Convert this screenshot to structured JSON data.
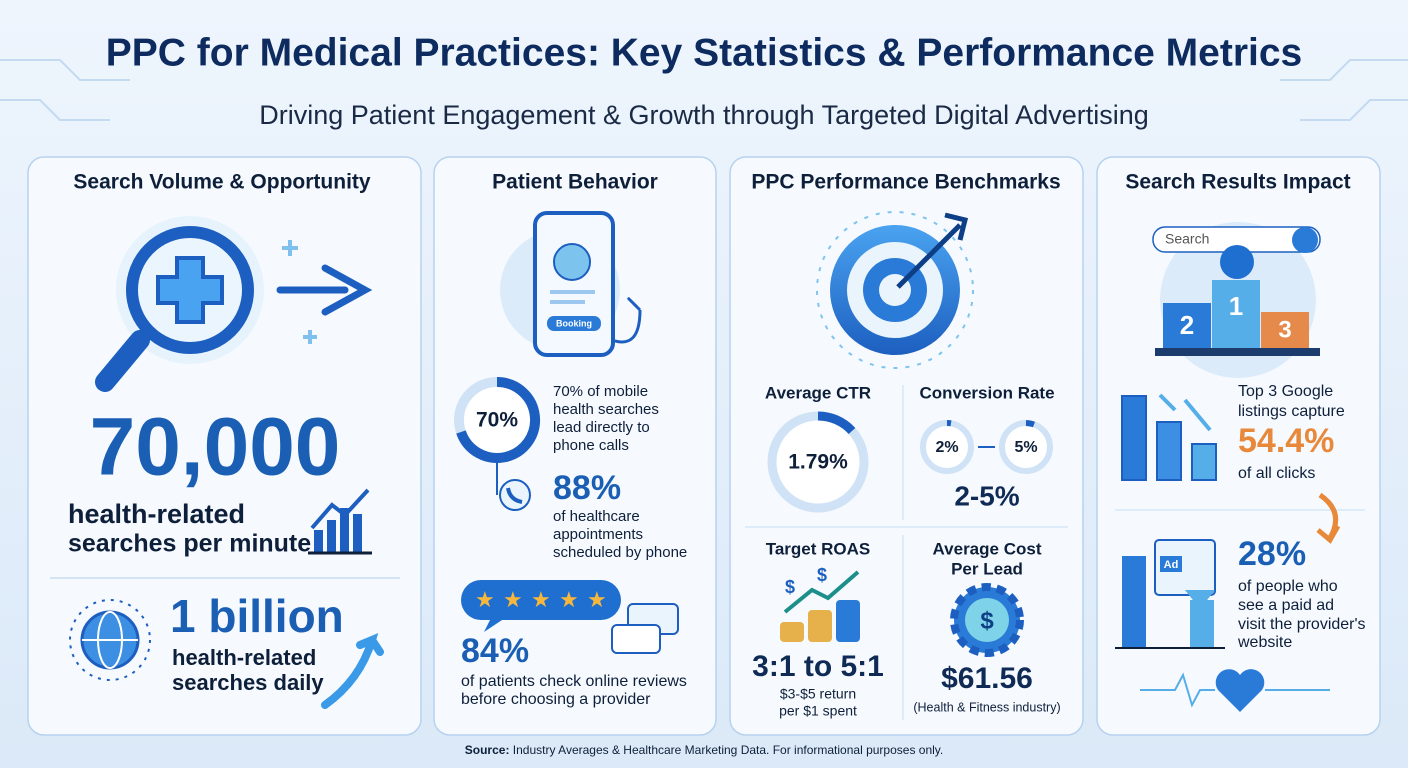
{
  "header": {
    "title": "PPC for Medical Practices: Key Statistics & Performance Metrics",
    "subtitle": "Driving Patient Engagement & Growth through Targeted Digital Advertising"
  },
  "panels": [
    {
      "heading": "Search Volume & Opportunity",
      "stat_1": {
        "value": "70,000",
        "lines": [
          "health-related",
          "searches per minute"
        ]
      },
      "stat_2": {
        "value": "1 billion",
        "lines": [
          "health-related",
          "searches daily"
        ]
      }
    },
    {
      "heading": "Patient Behavior",
      "phone_button": "Booking",
      "donut": {
        "value": "70%",
        "lines": [
          "70% of mobile",
          "health searches",
          "lead directly to",
          "phone calls"
        ]
      },
      "stat_1": {
        "value": "88%",
        "lines": [
          "of healthcare",
          "appointments",
          "scheduled by phone"
        ]
      },
      "stat_2": {
        "value": "84%",
        "lines": [
          "of patients check online reviews",
          "before choosing a provider"
        ]
      }
    },
    {
      "heading": "PPC Performance Benchmarks",
      "ctr": {
        "label": "Average CTR",
        "value": "1.79%"
      },
      "conversion": {
        "label": "Conversion Rate",
        "low": "2%",
        "high": "5%",
        "value": "2-5%"
      },
      "roas": {
        "label": "Target ROAS",
        "icon_symbols": [
          "$",
          "$"
        ],
        "value": "3:1 to 5:1",
        "lines": [
          "$3-$5 return",
          "per $1 spent"
        ]
      },
      "cost_per_lead": {
        "lines": [
          "Average Cost",
          "Per Lead"
        ],
        "icon_symbol": "$",
        "value": "$61.56",
        "note": "(Health & Fitness industry)"
      }
    },
    {
      "heading": "Search Results Impact",
      "search_placeholder": "Search",
      "podium": [
        "2",
        "1",
        "3"
      ],
      "stat_1": {
        "lines_before": [
          "Top 3 Google",
          "listings capture"
        ],
        "value": "54.4%",
        "line_after": "of all clicks"
      },
      "ad_icon": "Ad",
      "stat_2": {
        "value": "28%",
        "lines": [
          "of people who",
          "see a paid ad",
          "visit the provider's",
          "website"
        ]
      }
    }
  ],
  "footer": {
    "source_label": "Source:",
    "source_text": "Industry Averages & Healthcare Marketing Data. For informational purposes only."
  }
}
